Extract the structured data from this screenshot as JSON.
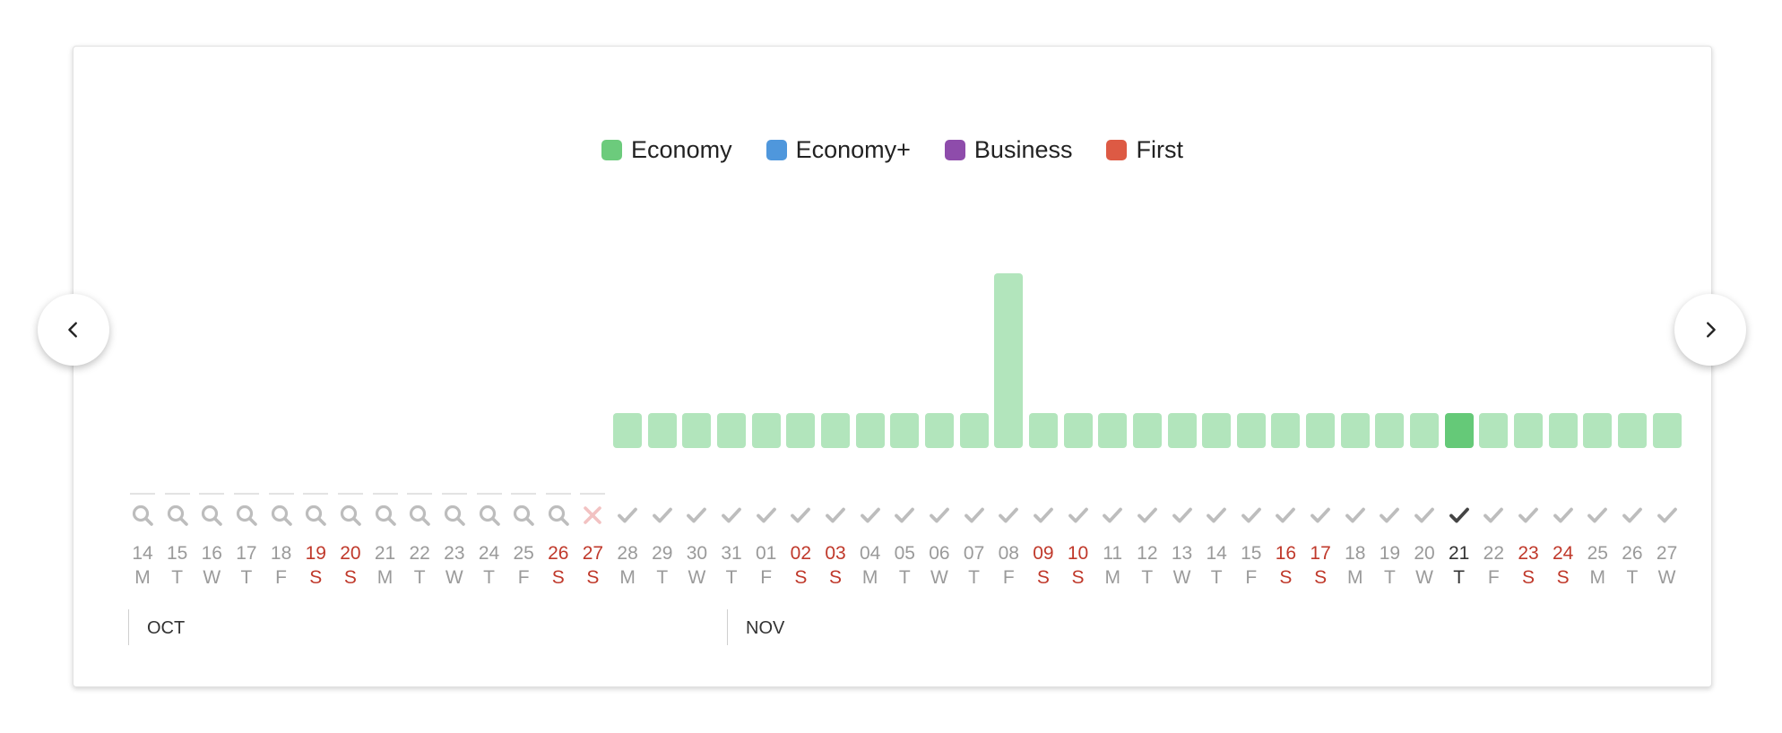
{
  "legend": [
    {
      "label": "Economy",
      "color": "#6ccb7c"
    },
    {
      "label": "Economy+",
      "color": "#4f97dc"
    },
    {
      "label": "Business",
      "color": "#8e4cab"
    },
    {
      "label": "First",
      "color": "#dd5a44"
    }
  ],
  "nav": {
    "prev_icon": "chevron-left-icon",
    "next_icon": "chevron-right-icon"
  },
  "months": [
    "OCT",
    "NOV"
  ],
  "colors": {
    "bar": "#b2e5bc",
    "bar_selected": "#65c978",
    "weekend": "#c0392b",
    "muted": "#9a9a9a"
  },
  "days": [
    {
      "num": "14",
      "letter": "M",
      "status": "search",
      "weekend": false,
      "level": 0
    },
    {
      "num": "15",
      "letter": "T",
      "status": "search",
      "weekend": false,
      "level": 0
    },
    {
      "num": "16",
      "letter": "W",
      "status": "search",
      "weekend": false,
      "level": 0
    },
    {
      "num": "17",
      "letter": "T",
      "status": "search",
      "weekend": false,
      "level": 0
    },
    {
      "num": "18",
      "letter": "F",
      "status": "search",
      "weekend": false,
      "level": 0
    },
    {
      "num": "19",
      "letter": "S",
      "status": "search",
      "weekend": true,
      "level": 0
    },
    {
      "num": "20",
      "letter": "S",
      "status": "search",
      "weekend": true,
      "level": 0
    },
    {
      "num": "21",
      "letter": "M",
      "status": "search",
      "weekend": false,
      "level": 0
    },
    {
      "num": "22",
      "letter": "T",
      "status": "search",
      "weekend": false,
      "level": 0
    },
    {
      "num": "23",
      "letter": "W",
      "status": "search",
      "weekend": false,
      "level": 0
    },
    {
      "num": "24",
      "letter": "T",
      "status": "search",
      "weekend": false,
      "level": 0
    },
    {
      "num": "25",
      "letter": "F",
      "status": "search",
      "weekend": false,
      "level": 0
    },
    {
      "num": "26",
      "letter": "S",
      "status": "search",
      "weekend": true,
      "level": 0
    },
    {
      "num": "27",
      "letter": "S",
      "status": "none",
      "weekend": true,
      "level": 0
    },
    {
      "num": "28",
      "letter": "M",
      "status": "check",
      "weekend": false,
      "level": 1
    },
    {
      "num": "29",
      "letter": "T",
      "status": "check",
      "weekend": false,
      "level": 1
    },
    {
      "num": "30",
      "letter": "W",
      "status": "check",
      "weekend": false,
      "level": 1
    },
    {
      "num": "31",
      "letter": "T",
      "status": "check",
      "weekend": false,
      "level": 1
    },
    {
      "num": "01",
      "letter": "F",
      "status": "check",
      "weekend": false,
      "level": 1
    },
    {
      "num": "02",
      "letter": "S",
      "status": "check",
      "weekend": true,
      "level": 1
    },
    {
      "num": "03",
      "letter": "S",
      "status": "check",
      "weekend": true,
      "level": 1
    },
    {
      "num": "04",
      "letter": "M",
      "status": "check",
      "weekend": false,
      "level": 1
    },
    {
      "num": "05",
      "letter": "T",
      "status": "check",
      "weekend": false,
      "level": 1
    },
    {
      "num": "06",
      "letter": "W",
      "status": "check",
      "weekend": false,
      "level": 1
    },
    {
      "num": "07",
      "letter": "T",
      "status": "check",
      "weekend": false,
      "level": 1
    },
    {
      "num": "08",
      "letter": "F",
      "status": "check",
      "weekend": false,
      "level": 5
    },
    {
      "num": "09",
      "letter": "S",
      "status": "check",
      "weekend": true,
      "level": 1
    },
    {
      "num": "10",
      "letter": "S",
      "status": "check",
      "weekend": true,
      "level": 1
    },
    {
      "num": "11",
      "letter": "M",
      "status": "check",
      "weekend": false,
      "level": 1
    },
    {
      "num": "12",
      "letter": "T",
      "status": "check",
      "weekend": false,
      "level": 1
    },
    {
      "num": "13",
      "letter": "W",
      "status": "check",
      "weekend": false,
      "level": 1
    },
    {
      "num": "14",
      "letter": "T",
      "status": "check",
      "weekend": false,
      "level": 1
    },
    {
      "num": "15",
      "letter": "F",
      "status": "check",
      "weekend": false,
      "level": 1
    },
    {
      "num": "16",
      "letter": "S",
      "status": "check",
      "weekend": true,
      "level": 1
    },
    {
      "num": "17",
      "letter": "S",
      "status": "check",
      "weekend": true,
      "level": 1
    },
    {
      "num": "18",
      "letter": "M",
      "status": "check",
      "weekend": false,
      "level": 1
    },
    {
      "num": "19",
      "letter": "T",
      "status": "check",
      "weekend": false,
      "level": 1
    },
    {
      "num": "20",
      "letter": "W",
      "status": "check",
      "weekend": false,
      "level": 1
    },
    {
      "num": "21",
      "letter": "T",
      "status": "check",
      "weekend": false,
      "level": 1,
      "selected": true
    },
    {
      "num": "22",
      "letter": "F",
      "status": "check",
      "weekend": false,
      "level": 1
    },
    {
      "num": "23",
      "letter": "S",
      "status": "check",
      "weekend": true,
      "level": 1
    },
    {
      "num": "24",
      "letter": "S",
      "status": "check",
      "weekend": true,
      "level": 1
    },
    {
      "num": "25",
      "letter": "M",
      "status": "check",
      "weekend": false,
      "level": 1
    },
    {
      "num": "26",
      "letter": "T",
      "status": "check",
      "weekend": false,
      "level": 1
    },
    {
      "num": "27",
      "letter": "W",
      "status": "check",
      "weekend": false,
      "level": 1
    }
  ]
}
